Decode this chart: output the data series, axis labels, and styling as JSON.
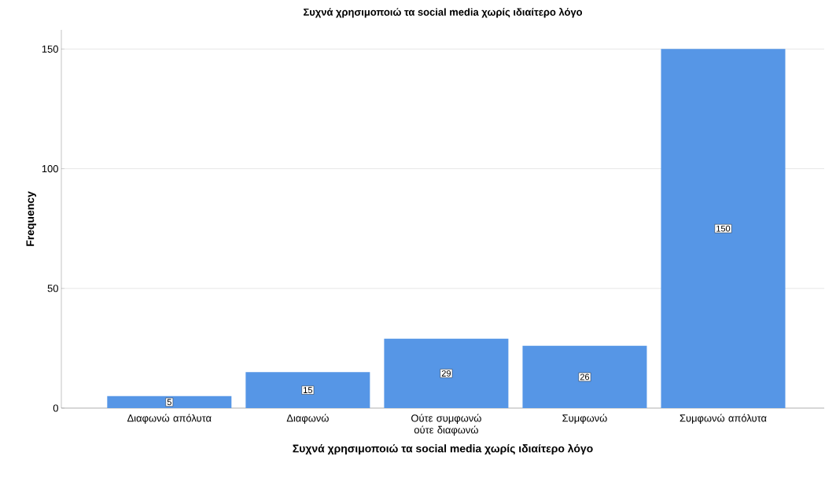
{
  "chart_data": {
    "type": "bar",
    "title": "Συχνά χρησιμοποιώ τα social media χωρίς ιδιαίτερο λόγο",
    "xlabel": "Συχνά χρησιμοποιώ τα social media χωρίς ιδιαίτερο λόγο",
    "ylabel": "Frequency",
    "categories": [
      "Διαφωνώ απόλυτα",
      "Διαφωνώ",
      "Ούτε συμφωνώ ούτε διαφωνώ",
      "Συμφωνώ",
      "Συμφωνώ απόλυτα"
    ],
    "values": [
      5,
      15,
      29,
      26,
      150
    ],
    "color": "#5696e6",
    "ylim": [
      0,
      158
    ],
    "yticks": [
      0,
      50,
      100,
      150
    ],
    "grid": "y",
    "data_labels": true
  }
}
